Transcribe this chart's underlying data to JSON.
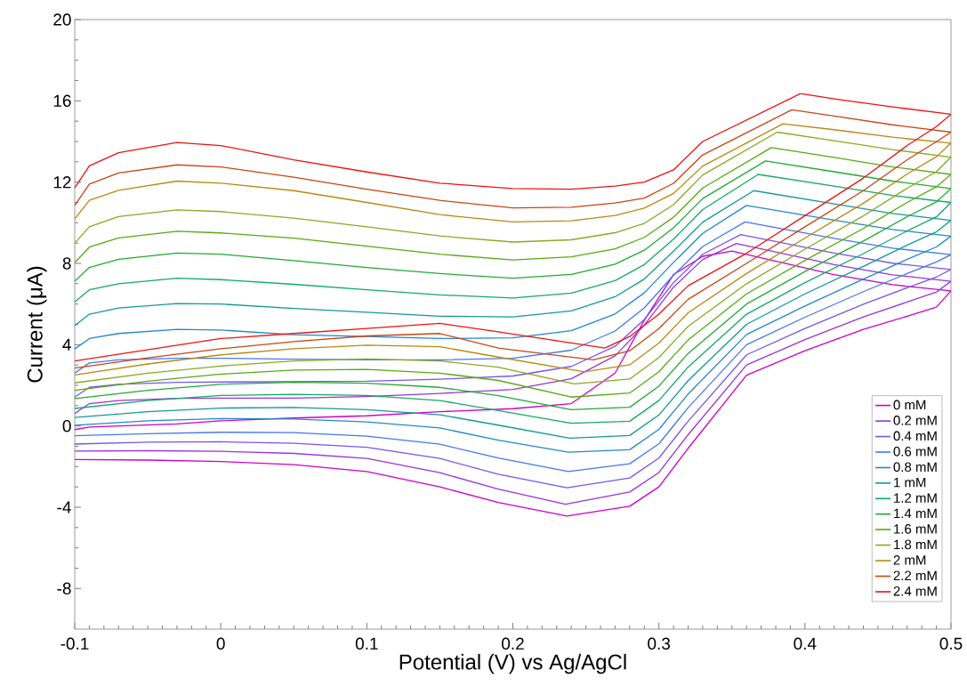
{
  "chart_data": {
    "type": "line",
    "xlabel": "Potential (V) vs Ag/AgCl",
    "ylabel": "Current (μA)",
    "xlim": [
      -0.1,
      0.5
    ],
    "xticks": [
      -0.1,
      0,
      0.1,
      0.2,
      0.3,
      0.4,
      0.5
    ],
    "ylim": [
      -10,
      20
    ],
    "yticks": [
      -8,
      -4,
      0,
      4,
      8,
      12,
      16,
      20
    ],
    "legend": "bottom right",
    "marker": "none",
    "line_style": "solid",
    "series": [
      {
        "name": "0 mM",
        "color": "#cc00cc",
        "x": [
          -0.1,
          -0.09,
          -0.07,
          -0.03,
          0,
          0.05,
          0.1,
          0.15,
          0.2,
          0.24,
          0.27,
          0.29,
          0.31,
          0.33,
          0.35,
          0.42,
          0.46,
          0.5,
          0.49,
          0.47,
          0.44,
          0.4,
          0.36,
          0.32,
          0.3,
          0.28,
          0.237,
          0.19,
          0.15,
          0.1,
          0.05,
          0,
          -0.05,
          -0.1
        ],
        "values": [
          -0.18,
          -0.05,
          0.0,
          0.1,
          0.25,
          0.39,
          0.5,
          0.7,
          0.85,
          1.1,
          2.6,
          5.2,
          7.45,
          8.35,
          8.61,
          7.45,
          6.95,
          6.65,
          5.85,
          5.4,
          4.75,
          3.7,
          2.5,
          -1.1,
          -3.0,
          -3.95,
          -4.43,
          -3.77,
          -3.0,
          -2.24,
          -1.9,
          -1.75,
          -1.68,
          -1.65
        ]
      },
      {
        "name": "0.2 mM",
        "color": "#9933dd",
        "x": [
          -0.1,
          -0.09,
          -0.07,
          -0.03,
          0,
          0.05,
          0.1,
          0.15,
          0.2,
          0.24,
          0.27,
          0.29,
          0.31,
          0.33,
          0.353,
          0.42,
          0.46,
          0.5,
          0.49,
          0.47,
          0.44,
          0.4,
          0.36,
          0.32,
          0.3,
          0.28,
          0.236,
          0.19,
          0.15,
          0.1,
          0.05,
          0,
          -0.05,
          -0.1
        ],
        "values": [
          0.61,
          1.1,
          1.25,
          1.36,
          1.37,
          1.37,
          1.45,
          1.6,
          1.8,
          2.32,
          3.45,
          4.96,
          6.83,
          8.19,
          8.98,
          7.94,
          7.44,
          7.12,
          6.59,
          6.1,
          5.37,
          4.25,
          3.0,
          -0.43,
          -2.29,
          -3.25,
          -3.85,
          -3.11,
          -2.3,
          -1.6,
          -1.35,
          -1.25,
          -1.22,
          -1.24
        ]
      },
      {
        "name": "0.4 mM",
        "color": "#7755ee",
        "x": [
          -0.1,
          -0.09,
          -0.07,
          -0.03,
          0.1,
          0.15,
          0.2,
          0.24,
          0.27,
          0.29,
          0.31,
          0.33,
          0.356,
          0.42,
          0.46,
          0.5,
          0.49,
          0.47,
          0.44,
          0.4,
          0.36,
          0.32,
          0.3,
          0.28,
          0.237,
          0.19,
          0.15,
          0.1,
          0.05,
          0,
          -0.05,
          -0.1
        ],
        "values": [
          1.42,
          1.9,
          2.05,
          2.15,
          2.2,
          2.3,
          2.46,
          2.93,
          3.92,
          5.24,
          7.05,
          8.45,
          9.42,
          8.51,
          8.01,
          7.7,
          7.33,
          6.8,
          5.99,
          4.8,
          3.5,
          0.23,
          -1.58,
          -2.56,
          -3.04,
          -2.37,
          -1.6,
          -1.05,
          -0.85,
          -0.78,
          -0.8,
          -0.89
        ]
      },
      {
        "name": "0.6 mM",
        "color": "#4477ee",
        "x": [
          -0.1,
          -0.09,
          -0.07,
          -0.03,
          0,
          0.05,
          0.1,
          0.15,
          0.2,
          0.24,
          0.27,
          0.29,
          0.31,
          0.33,
          0.359,
          0.42,
          0.46,
          0.5,
          0.49,
          0.47,
          0.44,
          0.4,
          0.36,
          0.32,
          0.3,
          0.28,
          0.238,
          0.19,
          0.15,
          0.1,
          0.05,
          0,
          -0.05,
          -0.1
        ],
        "values": [
          2.6,
          3.1,
          3.25,
          3.33,
          3.33,
          3.29,
          3.25,
          3.25,
          3.33,
          3.73,
          4.67,
          5.81,
          7.42,
          8.83,
          10.04,
          9.23,
          8.75,
          8.43,
          8.07,
          7.5,
          6.61,
          5.35,
          4.0,
          0.9,
          -0.88,
          -1.86,
          -2.24,
          -1.58,
          -0.9,
          -0.5,
          -0.33,
          -0.31,
          -0.38,
          -0.48
        ]
      },
      {
        "name": "0.8 mM",
        "color": "#2288cc",
        "x": [
          -0.1,
          -0.09,
          -0.07,
          -0.03,
          0,
          0.05,
          0.1,
          0.15,
          0.2,
          0.24,
          0.27,
          0.29,
          0.31,
          0.33,
          0.36,
          0.42,
          0.46,
          0.5,
          0.49,
          0.47,
          0.44,
          0.4,
          0.36,
          0.32,
          0.3,
          0.28,
          0.238,
          0.19,
          0.15,
          0.1,
          0.05,
          0,
          -0.05,
          -0.1
        ],
        "values": [
          3.79,
          4.3,
          4.55,
          4.75,
          4.72,
          4.49,
          4.4,
          4.3,
          4.34,
          4.69,
          5.51,
          6.55,
          8.05,
          9.48,
          10.85,
          10.13,
          9.67,
          9.34,
          8.81,
          8.2,
          7.23,
          5.9,
          4.5,
          1.57,
          -0.17,
          -1.17,
          -1.29,
          -0.7,
          -0.1,
          0.2,
          0.34,
          0.36,
          0.25,
          0.03
        ]
      },
      {
        "name": "1 mM",
        "color": "#119999",
        "x": [
          -0.1,
          -0.09,
          -0.07,
          -0.03,
          0,
          0.05,
          0.1,
          0.15,
          0.2,
          0.24,
          0.27,
          0.29,
          0.31,
          0.33,
          0.365,
          0.42,
          0.46,
          0.5,
          0.49,
          0.47,
          0.44,
          0.4,
          0.36,
          0.32,
          0.3,
          0.28,
          0.239,
          0.19,
          0.15,
          0.1,
          0.05,
          0,
          -0.05,
          -0.1
        ],
        "values": [
          4.93,
          5.5,
          5.8,
          6.02,
          6.0,
          5.78,
          5.6,
          5.4,
          5.37,
          5.66,
          6.36,
          7.23,
          8.6,
          10.03,
          11.58,
          10.93,
          10.46,
          10.12,
          9.55,
          8.9,
          7.85,
          6.5,
          5.0,
          2.23,
          0.54,
          -0.47,
          -0.6,
          0.04,
          0.55,
          0.8,
          0.91,
          0.88,
          0.7,
          0.42
        ]
      },
      {
        "name": "1.2 mM",
        "color": "#11aa66",
        "x": [
          -0.1,
          -0.09,
          -0.07,
          -0.03,
          0,
          0.05,
          0.1,
          0.15,
          0.2,
          0.24,
          0.27,
          0.29,
          0.31,
          0.33,
          0.368,
          0.42,
          0.46,
          0.5,
          0.49,
          0.47,
          0.44,
          0.4,
          0.36,
          0.32,
          0.3,
          0.28,
          0.24,
          0.19,
          0.15,
          0.1,
          0.05,
          0,
          -0.05,
          -0.1
        ],
        "values": [
          6.1,
          6.7,
          7.0,
          7.27,
          7.2,
          6.97,
          6.7,
          6.45,
          6.3,
          6.54,
          7.15,
          7.94,
          9.19,
          10.65,
          12.38,
          11.8,
          11.34,
          11.0,
          10.29,
          9.6,
          8.48,
          7.05,
          5.5,
          2.9,
          1.25,
          0.23,
          0.13,
          0.76,
          1.25,
          1.5,
          1.56,
          1.5,
          1.25,
          0.86
        ]
      },
      {
        "name": "1.4 mM",
        "color": "#22aa33",
        "x": [
          -0.1,
          -0.09,
          -0.07,
          -0.03,
          0,
          0.05,
          0.1,
          0.15,
          0.2,
          0.24,
          0.27,
          0.29,
          0.31,
          0.33,
          0.373,
          0.42,
          0.46,
          0.5,
          0.49,
          0.47,
          0.44,
          0.4,
          0.36,
          0.32,
          0.3,
          0.28,
          0.24,
          0.19,
          0.15,
          0.1,
          0.05,
          0,
          -0.05,
          -0.1
        ],
        "values": [
          7.12,
          7.8,
          8.2,
          8.51,
          8.45,
          8.14,
          7.8,
          7.5,
          7.27,
          7.46,
          7.96,
          8.65,
          9.75,
          11.19,
          13.04,
          12.51,
          12.05,
          11.68,
          11.03,
          10.3,
          9.1,
          7.6,
          6.0,
          3.57,
          1.96,
          0.92,
          0.8,
          1.49,
          1.9,
          2.1,
          2.15,
          2.05,
          1.75,
          1.35
        ]
      },
      {
        "name": "1.6 mM",
        "color": "#55aa11",
        "x": [
          -0.1,
          -0.09,
          -0.07,
          -0.03,
          0,
          0.05,
          0.1,
          0.15,
          0.2,
          0.24,
          0.27,
          0.29,
          0.31,
          0.33,
          0.377,
          0.42,
          0.46,
          0.5,
          0.49,
          0.47,
          0.44,
          0.4,
          0.36,
          0.32,
          0.3,
          0.28,
          0.24,
          0.19,
          0.15,
          0.1,
          0.05,
          0,
          -0.05,
          -0.1
        ],
        "values": [
          8.03,
          8.8,
          9.25,
          9.58,
          9.5,
          9.24,
          8.85,
          8.45,
          8.17,
          8.32,
          8.72,
          9.28,
          10.27,
          11.71,
          13.7,
          13.22,
          12.75,
          12.38,
          11.77,
          11.0,
          9.72,
          8.15,
          6.5,
          4.23,
          2.67,
          1.62,
          1.42,
          2.24,
          2.6,
          2.78,
          2.75,
          2.55,
          2.2,
          1.75
        ]
      },
      {
        "name": "1.8 mM",
        "color": "#88aa22",
        "x": [
          -0.1,
          -0.09,
          -0.07,
          -0.03,
          0,
          0.05,
          0.1,
          0.15,
          0.2,
          0.24,
          0.27,
          0.29,
          0.31,
          0.33,
          0.381,
          0.42,
          0.46,
          0.5,
          0.49,
          0.47,
          0.44,
          0.4,
          0.36,
          0.32,
          0.3,
          0.28,
          0.242,
          0.19,
          0.15,
          0.1,
          0.05,
          0,
          -0.05,
          -0.1
        ],
        "values": [
          9.0,
          9.8,
          10.3,
          10.63,
          10.55,
          10.23,
          9.8,
          9.35,
          9.05,
          9.16,
          9.51,
          9.97,
          10.89,
          12.35,
          14.46,
          14.04,
          13.6,
          13.23,
          12.51,
          11.7,
          10.34,
          8.7,
          7.0,
          4.9,
          3.37,
          2.31,
          2.07,
          2.89,
          3.2,
          3.3,
          3.2,
          2.95,
          2.6,
          2.12
        ]
      },
      {
        "name": "2 mM",
        "color": "#bb8811",
        "x": [
          -0.1,
          -0.09,
          -0.07,
          -0.03,
          0,
          0.05,
          0.1,
          0.15,
          0.2,
          0.24,
          0.27,
          0.29,
          0.31,
          0.33,
          0.385,
          0.42,
          0.46,
          0.5,
          0.49,
          0.47,
          0.44,
          0.4,
          0.36,
          0.32,
          0.3,
          0.28,
          0.249,
          0.19,
          0.15,
          0.1,
          0.05,
          0,
          -0.05,
          -0.1
        ],
        "values": [
          10.19,
          11.1,
          11.6,
          12.05,
          11.95,
          11.58,
          11.0,
          10.4,
          10.04,
          10.1,
          10.36,
          10.72,
          11.44,
          12.79,
          14.87,
          14.58,
          14.21,
          13.92,
          13.25,
          12.4,
          10.96,
          9.25,
          7.5,
          5.57,
          4.08,
          3.01,
          2.66,
          3.39,
          3.9,
          3.98,
          3.8,
          3.5,
          3.05,
          2.51
        ]
      },
      {
        "name": "2.2 mM",
        "color": "#cc4411",
        "x": [
          -0.1,
          -0.09,
          -0.07,
          -0.03,
          0,
          0.05,
          0.1,
          0.15,
          0.2,
          0.24,
          0.27,
          0.29,
          0.31,
          0.33,
          0.391,
          0.42,
          0.46,
          0.5,
          0.49,
          0.47,
          0.44,
          0.4,
          0.36,
          0.32,
          0.3,
          0.28,
          0.255,
          0.19,
          0.15,
          0.1,
          0.05,
          0,
          -0.05,
          -0.1
        ],
        "values": [
          10.85,
          11.9,
          12.45,
          12.85,
          12.75,
          12.24,
          11.65,
          11.1,
          10.73,
          10.76,
          10.97,
          11.21,
          11.94,
          13.34,
          15.56,
          15.25,
          14.82,
          14.46,
          13.99,
          13.1,
          11.58,
          9.8,
          8.0,
          6.23,
          4.79,
          3.7,
          3.25,
          3.83,
          4.55,
          4.43,
          4.15,
          3.8,
          3.35,
          2.85
        ]
      },
      {
        "name": "2.4 mM",
        "color": "#ee1111",
        "x": [
          -0.1,
          -0.09,
          -0.07,
          -0.03,
          0,
          0.05,
          0.1,
          0.15,
          0.2,
          0.24,
          0.27,
          0.29,
          0.31,
          0.33,
          0.397,
          0.42,
          0.46,
          0.5,
          0.49,
          0.47,
          0.44,
          0.4,
          0.36,
          0.32,
          0.3,
          0.28,
          0.263,
          0.19,
          0.15,
          0.1,
          0.05,
          0,
          -0.05,
          -0.1
        ],
        "values": [
          11.72,
          12.8,
          13.45,
          13.95,
          13.8,
          13.1,
          12.5,
          11.95,
          11.68,
          11.65,
          11.8,
          12.0,
          12.6,
          14.0,
          16.36,
          16.1,
          15.7,
          15.34,
          14.73,
          13.8,
          12.2,
          10.35,
          8.5,
          6.9,
          5.5,
          4.4,
          3.83,
          4.63,
          5.05,
          4.8,
          4.55,
          4.3,
          3.75,
          3.2
        ]
      }
    ]
  }
}
